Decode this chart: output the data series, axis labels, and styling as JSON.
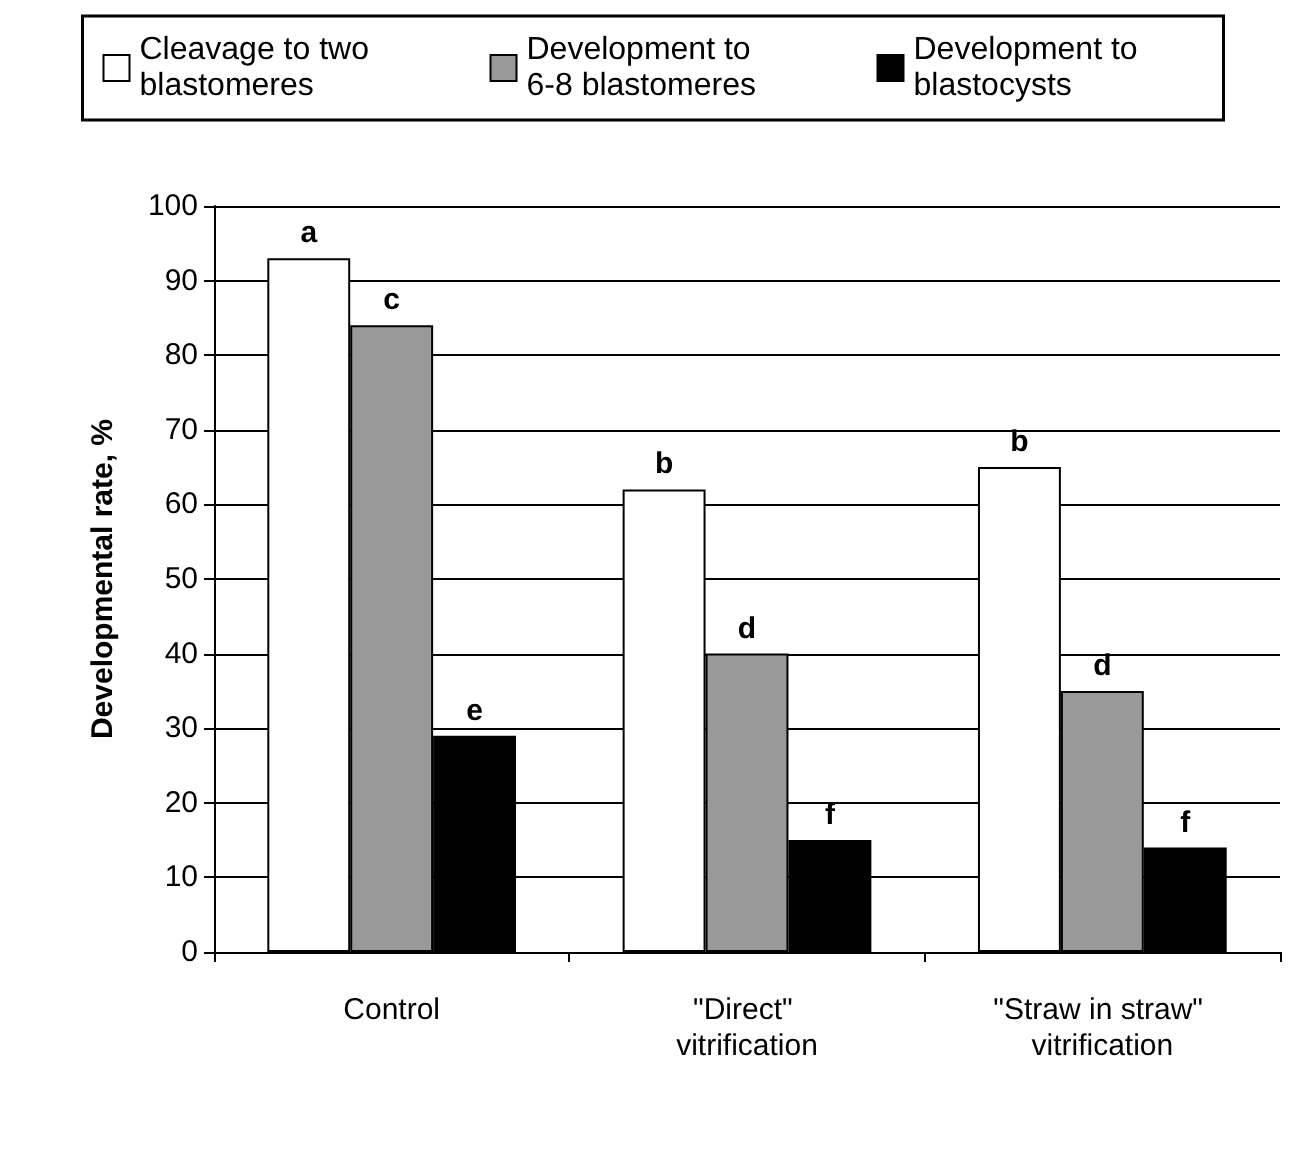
{
  "chart_data": {
    "type": "bar",
    "ylabel": "Developmental rate, %",
    "categories": [
      "Control",
      "\"Direct\" vitrification",
      "\"Straw in straw\" vitrification"
    ],
    "series": [
      {
        "name": "Cleavage to two blastomeres",
        "color": "#ffffff",
        "values": [
          93,
          62,
          65
        ],
        "value_labels": [
          "a",
          "b",
          "b"
        ]
      },
      {
        "name": "Development to 6-8 blastomeres",
        "color": "#999999",
        "values": [
          84,
          40,
          35
        ],
        "value_labels": [
          "c",
          "d",
          "d"
        ]
      },
      {
        "name": "Development to blastocysts",
        "color": "#000000",
        "values": [
          29,
          15,
          14
        ],
        "value_labels": [
          "e",
          "f",
          "f"
        ]
      }
    ],
    "ylim": [
      0,
      100
    ],
    "yticks": [
      0,
      10,
      20,
      30,
      40,
      50,
      60,
      70,
      80,
      90,
      100
    ],
    "grid": "y",
    "legend": "top"
  }
}
